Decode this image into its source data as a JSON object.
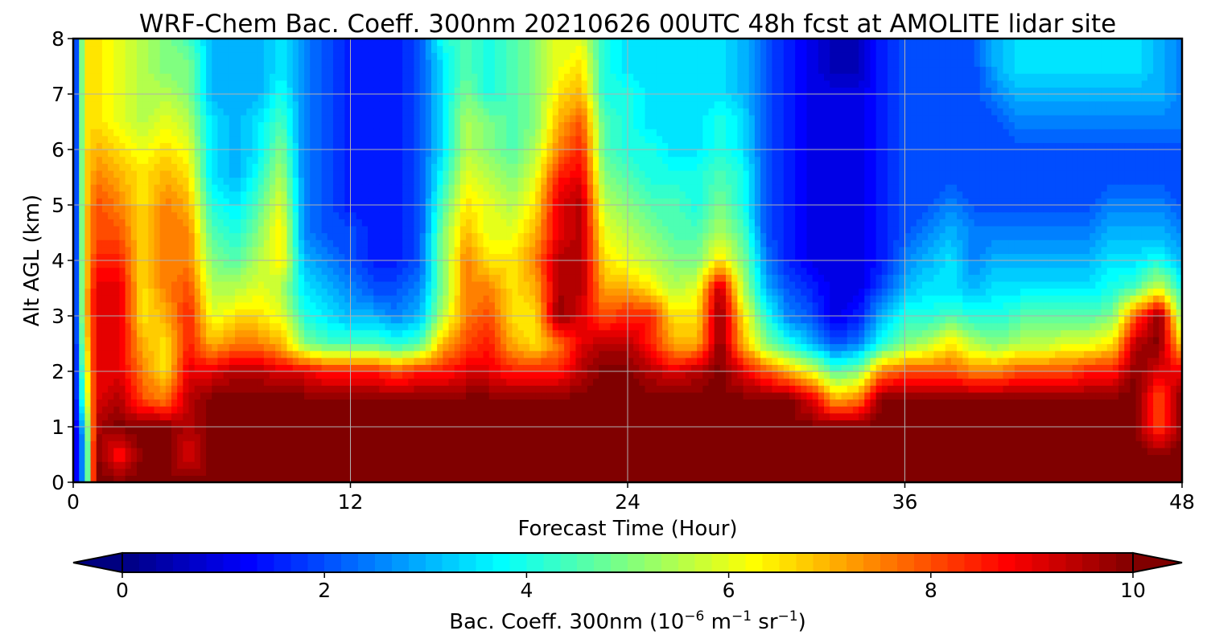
{
  "chart_data": {
    "type": "heatmap",
    "title": "WRF-Chem Bac. Coeff. 300nm  20210626 00UTC 48h fcst at AMOLITE lidar site",
    "xlabel": "Forecast Time (Hour)",
    "ylabel": "Alt AGL (km)",
    "xlim": [
      0,
      48
    ],
    "ylim": [
      0,
      8
    ],
    "xticks": [
      "0",
      "12",
      "24",
      "36",
      "48"
    ],
    "yticks": [
      "0",
      "1",
      "2",
      "3",
      "4",
      "5",
      "6",
      "7",
      "8"
    ],
    "grid": true,
    "colormap": "jet",
    "colorbar": {
      "orientation": "horizontal",
      "range": [
        0,
        10
      ],
      "extend": "both",
      "ticks": [
        "0",
        "2",
        "4",
        "6",
        "8",
        "10"
      ],
      "label_main": "Bac. Coeff. 300nm  (10",
      "label_exp1": "−6",
      "label_mid": " m",
      "label_exp2": "−1",
      "label_mid2": " sr",
      "label_exp3": "−1",
      "label_end": ")"
    },
    "x": [
      0,
      0.5,
      1,
      2,
      3,
      4,
      5,
      6,
      7,
      8,
      9,
      10,
      11,
      12,
      13,
      14,
      15,
      16,
      17,
      18,
      19,
      20,
      21,
      22,
      23,
      24,
      25,
      26,
      27,
      28,
      29,
      30,
      31,
      32,
      33,
      34,
      35,
      36,
      37,
      38,
      39,
      40,
      41,
      42,
      43,
      44,
      45,
      46,
      47,
      48
    ],
    "y": [
      0,
      0.5,
      1,
      1.5,
      2,
      2.5,
      3,
      3.5,
      4,
      4.5,
      5,
      5.5,
      6,
      6.5,
      7,
      7.5,
      8
    ],
    "values": [
      [
        0.5,
        3,
        10,
        10,
        10,
        10,
        10,
        10,
        10,
        10,
        10,
        10,
        10,
        10,
        10,
        10,
        10,
        10,
        10,
        10,
        10,
        10,
        10,
        10,
        10,
        10,
        10,
        10,
        10,
        10,
        10,
        10,
        10,
        10,
        10,
        10,
        10,
        10,
        10,
        10,
        10,
        10,
        10,
        10,
        10,
        10,
        10,
        10,
        10,
        10
      ],
      [
        0.5,
        3,
        10,
        8.5,
        10,
        10,
        9,
        10,
        10,
        10,
        10,
        10,
        10,
        10,
        10,
        10,
        10,
        10,
        10,
        10,
        10,
        10,
        10,
        10,
        10,
        10,
        10,
        10,
        10,
        10,
        10,
        10,
        10,
        10,
        10,
        10,
        10,
        10,
        10,
        10,
        10,
        10,
        10,
        10,
        10,
        10,
        10,
        10,
        10,
        10
      ],
      [
        0.5,
        3.5,
        9.5,
        10,
        10,
        10,
        9.5,
        10,
        10,
        10,
        10,
        10,
        10,
        10,
        10,
        10,
        10,
        10,
        10,
        10,
        10,
        10,
        10,
        10,
        10,
        10,
        10,
        10,
        10,
        10,
        10,
        10,
        10,
        10,
        10,
        10,
        10,
        10,
        10,
        10,
        10,
        10,
        10,
        10,
        10,
        10,
        10,
        10,
        8,
        10
      ],
      [
        0.5,
        5,
        9,
        9.5,
        8,
        7.5,
        9.5,
        10,
        10,
        10,
        10,
        10,
        10,
        10,
        10,
        10,
        10,
        10,
        10,
        10,
        10,
        10,
        10,
        10,
        10,
        10,
        10,
        10,
        10,
        10,
        10,
        10,
        10,
        9,
        7,
        7.5,
        10,
        10,
        10,
        10,
        10,
        10,
        10,
        10,
        10,
        10,
        10,
        10,
        8,
        10
      ],
      [
        0.5,
        5.5,
        9,
        9,
        7.5,
        6.5,
        9,
        9,
        9.5,
        9.5,
        9,
        9,
        8.5,
        8.5,
        8.5,
        8,
        8.5,
        8.5,
        9,
        9,
        8.5,
        8.5,
        8.5,
        9.5,
        10,
        10,
        9.5,
        9,
        9.5,
        10,
        9,
        8,
        7,
        6,
        4.5,
        5,
        7.5,
        8,
        8,
        8,
        7.5,
        7.5,
        8,
        8,
        8,
        8.5,
        8.5,
        10,
        9,
        9
      ],
      [
        0.5,
        6,
        9,
        9,
        7,
        6.5,
        8.5,
        7,
        7.5,
        7.5,
        7,
        5,
        4.5,
        4.5,
        4.5,
        4,
        4.5,
        7,
        8,
        8.5,
        7,
        6.5,
        7.5,
        9,
        9.5,
        9.5,
        8.5,
        7,
        7,
        10,
        7,
        5,
        4,
        3,
        2,
        2.5,
        4,
        5,
        5.5,
        6.5,
        5.5,
        5,
        5.5,
        5.5,
        6,
        6,
        6.5,
        9.5,
        10,
        6.5
      ],
      [
        0.5,
        6.5,
        9,
        9,
        6.5,
        7,
        8.5,
        6,
        6.5,
        6.5,
        6,
        4,
        3.5,
        3,
        3,
        2.5,
        3,
        5.5,
        7.5,
        8,
        6.5,
        6.5,
        10,
        9,
        8,
        8.5,
        8.5,
        6.5,
        6.5,
        10,
        6.5,
        4,
        2.5,
        2,
        1,
        1.5,
        3,
        4,
        4,
        4.5,
        4,
        4,
        4.5,
        4.5,
        4.5,
        4.5,
        5,
        8,
        10,
        5
      ],
      [
        0.5,
        6.5,
        9,
        9,
        6.5,
        7.5,
        8,
        5.5,
        5.5,
        6,
        5.5,
        3.5,
        3,
        2.5,
        2,
        2,
        2.5,
        5,
        7.5,
        7.5,
        6.5,
        7,
        9.5,
        9.5,
        7,
        7,
        6.5,
        5.5,
        6,
        9.5,
        5.5,
        3,
        2,
        1.5,
        1,
        1,
        2,
        3,
        3.5,
        3.5,
        3,
        3.5,
        3.5,
        3.5,
        3.5,
        3.5,
        4,
        4.5,
        6,
        4
      ],
      [
        0.5,
        6.5,
        8.5,
        8.5,
        6.5,
        7.5,
        7.5,
        5,
        4.5,
        5.5,
        6.5,
        3,
        2.5,
        2,
        1.5,
        1.5,
        2,
        5,
        7.5,
        6.5,
        6.5,
        7.5,
        9.5,
        9.5,
        6.5,
        6,
        5.5,
        5,
        5,
        6.5,
        5,
        2.5,
        1.5,
        1,
        1,
        1,
        1.5,
        2.5,
        3,
        3.5,
        2.5,
        3,
        3,
        3,
        3,
        3,
        3.5,
        3.5,
        4,
        3
      ],
      [
        0.5,
        6.5,
        8,
        8,
        6.5,
        7.5,
        7.5,
        4.5,
        4,
        5,
        6.5,
        2.5,
        2,
        2,
        1.5,
        1.5,
        2,
        5,
        7,
        6,
        6,
        7,
        9,
        9.5,
        6,
        5.5,
        5,
        4.5,
        4.5,
        5.5,
        4.5,
        2,
        1.5,
        1,
        1,
        1,
        1.5,
        2,
        2.5,
        3,
        2.5,
        2.5,
        2.5,
        2.5,
        2.5,
        2.5,
        3,
        3,
        3,
        2.5
      ],
      [
        0.5,
        6.5,
        8,
        7.5,
        6.5,
        7.5,
        7,
        4,
        3.5,
        4.5,
        6,
        2.5,
        2,
        1.5,
        1.5,
        1.5,
        2,
        4.5,
        6.5,
        6,
        5.5,
        6.5,
        9,
        9.5,
        5.5,
        5,
        4.5,
        4.5,
        4,
        5,
        4,
        2,
        1.5,
        1,
        1,
        1,
        1.5,
        2,
        2,
        2.5,
        2,
        2,
        2,
        2,
        2,
        2,
        2.5,
        2.5,
        2.5,
        2
      ],
      [
        0.5,
        6.5,
        7.5,
        7,
        6.5,
        7,
        6.5,
        3.5,
        3,
        4,
        5.5,
        2.5,
        2,
        1.5,
        1.5,
        1.5,
        2,
        4,
        6,
        5.5,
        5,
        6,
        8.5,
        9,
        5,
        4.5,
        4,
        4,
        4,
        4.5,
        4,
        2,
        1.5,
        1,
        1,
        1,
        1.5,
        2,
        2,
        2,
        2,
        2,
        2,
        2,
        2,
        2,
        2,
        2,
        2,
        2
      ],
      [
        0.5,
        6.5,
        7,
        6.5,
        6,
        6.5,
        6,
        3.5,
        3,
        3.5,
        5,
        2.5,
        2,
        1.5,
        1.5,
        1.5,
        2,
        3.5,
        5.5,
        5,
        4.5,
        5.5,
        7.5,
        8.5,
        4.5,
        4,
        4,
        3.5,
        3.5,
        4,
        3.5,
        2,
        1.5,
        1,
        1,
        1,
        1.5,
        2,
        2,
        2,
        2,
        2,
        2,
        2,
        2,
        2,
        2,
        2,
        2,
        2
      ],
      [
        0.5,
        6.5,
        6.5,
        6,
        5.5,
        6,
        5.5,
        3.5,
        3,
        3.5,
        4.5,
        2.5,
        2,
        1.5,
        1.5,
        1.5,
        2,
        3.5,
        5.5,
        5,
        4.5,
        5,
        7,
        8,
        4.5,
        4,
        3.5,
        3.5,
        3.5,
        4,
        3.5,
        2,
        1.5,
        1,
        1,
        1,
        1.5,
        2,
        2,
        2,
        2,
        2,
        2.5,
        2.5,
        2.5,
        2.5,
        2.5,
        2.5,
        2.5,
        2.5
      ],
      [
        0.5,
        6.5,
        6.5,
        6,
        5.5,
        5.5,
        5,
        3,
        3,
        3,
        4,
        2.5,
        2,
        1.5,
        1.5,
        1.5,
        2,
        3.5,
        5,
        4,
        4.5,
        5,
        6.5,
        7,
        4,
        4,
        3.5,
        3.5,
        3.5,
        3.5,
        3,
        2,
        1.5,
        1,
        1,
        1,
        1.5,
        2,
        2,
        2,
        2,
        2.5,
        3,
        3,
        3,
        3,
        3,
        3,
        3,
        2.5
      ],
      [
        0.5,
        6.5,
        6.5,
        6,
        5.5,
        5,
        5,
        3,
        3,
        3,
        3.5,
        2.5,
        2,
        1.5,
        1.5,
        1.5,
        2,
        3.5,
        4.5,
        4,
        4.5,
        5,
        6,
        6.5,
        4,
        3.5,
        3.5,
        3.5,
        3.5,
        3.5,
        3,
        2,
        1.5,
        1,
        0.5,
        0.5,
        1.5,
        2,
        2,
        2,
        2,
        3,
        3.5,
        3.5,
        3.5,
        3.5,
        3.5,
        3.5,
        3,
        2.5
      ],
      [
        0.5,
        6.5,
        6.5,
        6,
        5.5,
        5,
        4.5,
        3,
        3,
        3,
        3.5,
        2.5,
        2,
        1.5,
        1.5,
        1.5,
        2,
        4,
        4.5,
        4,
        4.5,
        5,
        6,
        6,
        4,
        3.5,
        3.5,
        3.5,
        3.5,
        3.5,
        3,
        2,
        1.5,
        1,
        0.5,
        0.5,
        1.5,
        2,
        2,
        2,
        2,
        3,
        3.5,
        3.5,
        3.5,
        3.5,
        3.5,
        3.5,
        3,
        2.5
      ]
    ]
  }
}
